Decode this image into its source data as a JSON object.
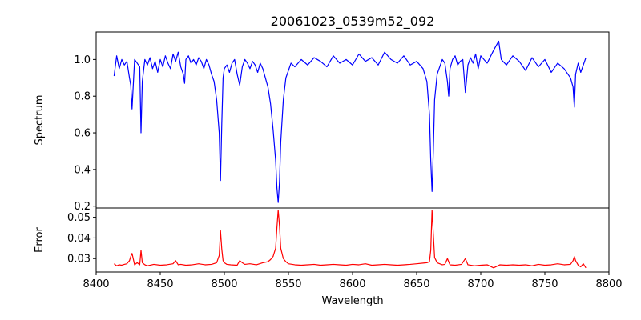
{
  "chart_data": {
    "type": "line",
    "title": "20061023_0539m52_092",
    "xlabel": "Wavelength",
    "xlim": [
      8400,
      8800
    ],
    "x_ticks": [
      "8400",
      "8450",
      "8500",
      "8550",
      "8600",
      "8650",
      "8700",
      "8750",
      "8800"
    ],
    "grid": false,
    "panels": [
      {
        "name": "spectrum",
        "ylabel": "Spectrum",
        "ylim": [
          0.19,
          1.15
        ],
        "y_ticks": [
          "0.2",
          "0.4",
          "0.6",
          "0.8",
          "1.0"
        ],
        "color": "#0000ff",
        "x": [
          8414,
          8416,
          8418,
          8420,
          8422,
          8424,
          8426,
          8427,
          8428,
          8430,
          8432,
          8434,
          8435,
          8436,
          8438,
          8440,
          8442,
          8444,
          8446,
          8448,
          8450,
          8452,
          8454,
          8456,
          8458,
          8460,
          8462,
          8464,
          8466,
          8468,
          8469,
          8470,
          8472,
          8474,
          8476,
          8478,
          8480,
          8482,
          8484,
          8486,
          8488,
          8490,
          8492,
          8494,
          8496,
          8497,
          8498,
          8499,
          8500,
          8502,
          8504,
          8506,
          8508,
          8510,
          8512,
          8514,
          8516,
          8518,
          8520,
          8522,
          8524,
          8526,
          8528,
          8530,
          8532,
          8534,
          8536,
          8538,
          8540,
          8541,
          8542,
          8543,
          8544,
          8546,
          8548,
          8550,
          8552,
          8555,
          8560,
          8565,
          8570,
          8575,
          8580,
          8585,
          8590,
          8595,
          8600,
          8605,
          8610,
          8615,
          8620,
          8625,
          8630,
          8635,
          8640,
          8645,
          8650,
          8655,
          8658,
          8660,
          8661,
          8662,
          8663,
          8664,
          8666,
          8668,
          8670,
          8672,
          8674,
          8675,
          8676,
          8678,
          8680,
          8682,
          8684,
          8686,
          8688,
          8690,
          8692,
          8694,
          8696,
          8698,
          8700,
          8705,
          8710,
          8714,
          8716,
          8720,
          8725,
          8730,
          8735,
          8740,
          8745,
          8750,
          8755,
          8760,
          8765,
          8770,
          8772,
          8773,
          8774,
          8776,
          8778,
          8780,
          8782
        ],
        "y": [
          0.91,
          1.02,
          0.95,
          1.0,
          0.97,
          0.99,
          0.9,
          0.86,
          0.73,
          1.0,
          0.98,
          0.96,
          0.6,
          0.88,
          1.0,
          0.97,
          1.01,
          0.95,
          0.99,
          0.93,
          1.0,
          0.96,
          1.02,
          0.98,
          0.95,
          1.03,
          0.99,
          1.04,
          0.96,
          0.92,
          0.87,
          1.0,
          1.02,
          0.98,
          1.0,
          0.97,
          1.01,
          0.99,
          0.95,
          1.0,
          0.97,
          0.92,
          0.88,
          0.78,
          0.6,
          0.34,
          0.65,
          0.9,
          0.95,
          0.97,
          0.93,
          0.98,
          1.0,
          0.92,
          0.86,
          0.96,
          1.0,
          0.98,
          0.95,
          0.99,
          0.97,
          0.93,
          0.98,
          0.95,
          0.9,
          0.85,
          0.76,
          0.62,
          0.45,
          0.3,
          0.22,
          0.33,
          0.55,
          0.78,
          0.9,
          0.94,
          0.98,
          0.96,
          1.0,
          0.97,
          1.01,
          0.99,
          0.96,
          1.02,
          0.98,
          1.0,
          0.97,
          1.03,
          0.99,
          1.01,
          0.97,
          1.04,
          1.0,
          0.98,
          1.02,
          0.97,
          0.99,
          0.95,
          0.88,
          0.7,
          0.45,
          0.28,
          0.5,
          0.78,
          0.92,
          0.96,
          1.0,
          0.98,
          0.88,
          0.8,
          0.95,
          1.0,
          1.02,
          0.97,
          0.99,
          1.0,
          0.82,
          0.97,
          1.01,
          0.98,
          1.03,
          0.95,
          1.02,
          0.98,
          1.05,
          1.1,
          1.0,
          0.97,
          1.02,
          0.99,
          0.94,
          1.01,
          0.96,
          1.0,
          0.93,
          0.98,
          0.95,
          0.9,
          0.85,
          0.74,
          0.92,
          0.98,
          0.93,
          0.97,
          1.01
        ]
      },
      {
        "name": "error",
        "ylabel": "Error",
        "ylim": [
          0.0235,
          0.0545
        ],
        "y_ticks": [
          "0.03",
          "0.04",
          "0.05"
        ],
        "color": "#ff0000",
        "x": [
          8414,
          8416,
          8418,
          8420,
          8422,
          8424,
          8426,
          8427,
          8428,
          8430,
          8432,
          8434,
          8435,
          8436,
          8438,
          8440,
          8445,
          8450,
          8455,
          8460,
          8462,
          8464,
          8466,
          8470,
          8475,
          8480,
          8485,
          8490,
          8494,
          8496,
          8497,
          8498,
          8499,
          8500,
          8502,
          8505,
          8510,
          8512,
          8514,
          8516,
          8520,
          8525,
          8530,
          8534,
          8536,
          8538,
          8540,
          8541,
          8542,
          8543,
          8544,
          8546,
          8548,
          8550,
          8555,
          8560,
          8565,
          8570,
          8575,
          8580,
          8585,
          8590,
          8595,
          8600,
          8605,
          8610,
          8615,
          8620,
          8625,
          8630,
          8635,
          8640,
          8645,
          8650,
          8655,
          8658,
          8660,
          8661,
          8662,
          8663,
          8664,
          8666,
          8668,
          8670,
          8672,
          8674,
          8676,
          8680,
          8685,
          8688,
          8690,
          8695,
          8700,
          8705,
          8710,
          8715,
          8720,
          8725,
          8730,
          8735,
          8740,
          8745,
          8750,
          8755,
          8760,
          8765,
          8770,
          8772,
          8773,
          8774,
          8776,
          8778,
          8780,
          8782
        ],
        "y": [
          0.0275,
          0.0265,
          0.027,
          0.0268,
          0.0272,
          0.0275,
          0.029,
          0.031,
          0.0325,
          0.027,
          0.028,
          0.027,
          0.034,
          0.028,
          0.027,
          0.0265,
          0.0272,
          0.0268,
          0.027,
          0.0275,
          0.029,
          0.027,
          0.0272,
          0.0268,
          0.027,
          0.0275,
          0.027,
          0.0272,
          0.028,
          0.0315,
          0.0435,
          0.0345,
          0.029,
          0.028,
          0.0272,
          0.027,
          0.0268,
          0.029,
          0.028,
          0.0272,
          0.0275,
          0.027,
          0.028,
          0.0285,
          0.0295,
          0.031,
          0.035,
          0.045,
          0.0535,
          0.046,
          0.035,
          0.03,
          0.0285,
          0.0275,
          0.027,
          0.0268,
          0.027,
          0.0272,
          0.0268,
          0.027,
          0.0272,
          0.027,
          0.0268,
          0.0272,
          0.027,
          0.0275,
          0.0268,
          0.027,
          0.0272,
          0.027,
          0.0268,
          0.027,
          0.0272,
          0.0275,
          0.0278,
          0.028,
          0.0285,
          0.034,
          0.0535,
          0.042,
          0.0305,
          0.028,
          0.0275,
          0.027,
          0.0272,
          0.03,
          0.027,
          0.0268,
          0.0272,
          0.03,
          0.027,
          0.0265,
          0.0268,
          0.027,
          0.0255,
          0.027,
          0.0268,
          0.027,
          0.0268,
          0.027,
          0.0265,
          0.0272,
          0.0268,
          0.027,
          0.0275,
          0.027,
          0.0272,
          0.029,
          0.031,
          0.029,
          0.0268,
          0.026,
          0.0275,
          0.0255
        ]
      }
    ]
  }
}
